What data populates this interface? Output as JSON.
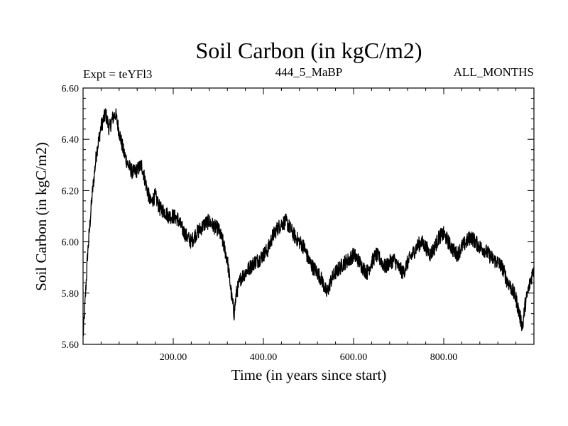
{
  "chart_data": {
    "type": "line",
    "title": "Soil Carbon (in kgC/m2)",
    "subtitle_left": "Expt = teYFl3",
    "subtitle_center": "444_5_MaBP",
    "subtitle_right": "ALL_MONTHS",
    "xlabel": "Time (in years since start)",
    "ylabel": "Soil Carbon (in kgC/m2)",
    "xlim": [
      0,
      1000
    ],
    "ylim": [
      5.6,
      6.6
    ],
    "xticks": [
      200,
      400,
      600,
      800
    ],
    "xtick_labels": [
      "200.00",
      "400.00",
      "600.00",
      "800.00"
    ],
    "yticks": [
      5.6,
      5.8,
      6.0,
      6.2,
      6.4,
      6.6
    ],
    "ytick_labels": [
      "5.60",
      "5.80",
      "6.00",
      "6.20",
      "6.40",
      "6.60"
    ],
    "series": [
      {
        "name": "Soil Carbon",
        "color": "#000000",
        "noise": 0.03,
        "x": [
          0,
          5,
          10,
          20,
          30,
          40,
          50,
          58,
          65,
          72,
          80,
          90,
          100,
          110,
          120,
          130,
          140,
          150,
          160,
          170,
          180,
          190,
          200,
          210,
          220,
          230,
          240,
          250,
          260,
          270,
          280,
          290,
          300,
          310,
          320,
          330,
          335,
          340,
          350,
          360,
          370,
          380,
          390,
          400,
          410,
          420,
          430,
          440,
          450,
          460,
          470,
          480,
          490,
          500,
          510,
          520,
          530,
          540,
          545,
          550,
          560,
          570,
          580,
          590,
          600,
          610,
          620,
          630,
          640,
          650,
          660,
          670,
          680,
          690,
          700,
          710,
          720,
          730,
          740,
          750,
          760,
          770,
          780,
          790,
          800,
          810,
          820,
          830,
          840,
          850,
          860,
          870,
          880,
          890,
          900,
          910,
          920,
          930,
          940,
          950,
          960,
          970,
          975,
          980,
          990,
          1000
        ],
        "y": [
          5.63,
          5.78,
          5.95,
          6.18,
          6.35,
          6.45,
          6.5,
          6.44,
          6.48,
          6.5,
          6.43,
          6.35,
          6.3,
          6.27,
          6.28,
          6.3,
          6.22,
          6.15,
          6.18,
          6.13,
          6.12,
          6.1,
          6.1,
          6.09,
          6.05,
          6.02,
          6.0,
          6.03,
          6.05,
          6.07,
          6.08,
          6.06,
          6.05,
          6.0,
          5.93,
          5.78,
          5.72,
          5.8,
          5.86,
          5.88,
          5.9,
          5.92,
          5.93,
          5.95,
          5.97,
          6.02,
          6.05,
          6.07,
          6.08,
          6.05,
          6.02,
          6.0,
          5.98,
          5.93,
          5.9,
          5.88,
          5.85,
          5.8,
          5.82,
          5.85,
          5.88,
          5.9,
          5.92,
          5.93,
          5.95,
          5.93,
          5.9,
          5.88,
          5.92,
          5.95,
          5.93,
          5.9,
          5.92,
          5.93,
          5.9,
          5.88,
          5.92,
          5.95,
          5.98,
          6.0,
          5.98,
          5.95,
          5.98,
          6.02,
          6.03,
          6.0,
          5.97,
          5.95,
          5.98,
          6.0,
          6.02,
          6.0,
          5.98,
          5.97,
          5.95,
          5.93,
          5.92,
          5.9,
          5.85,
          5.82,
          5.78,
          5.7,
          5.67,
          5.75,
          5.83,
          5.9
        ]
      }
    ]
  }
}
